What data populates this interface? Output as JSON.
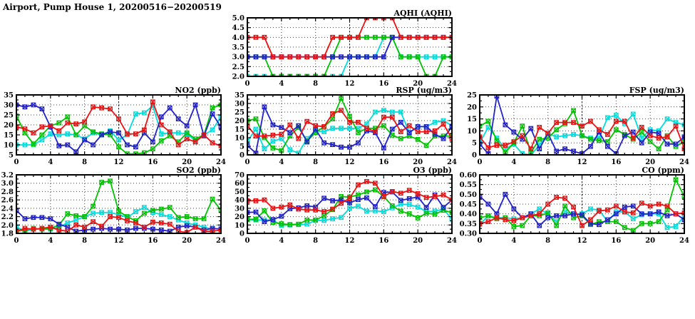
{
  "page_title": "Airport, Pump House 1, 20200516−20200519",
  "colors": {
    "red": "#ee1111",
    "blue": "#2222cc",
    "green": "#00c400",
    "cyan": "#00dede"
  },
  "chart_data": [
    {
      "id": "aqhi",
      "type": "line",
      "title": "AQHI (AQHI)",
      "xlim": [
        0,
        24
      ],
      "x_ticks": [
        0,
        4,
        8,
        12,
        16,
        20,
        24
      ],
      "x_minor_step": 1,
      "ylim": [
        2.0,
        5.0
      ],
      "ytick_step": 0.5,
      "ytick_decimals": 1,
      "grid": true,
      "legend": "none",
      "series": [
        {
          "name": "cyan",
          "color": "#00dede",
          "values": [
            2,
            2,
            2,
            2,
            2,
            2,
            2,
            2,
            2,
            2,
            2,
            2,
            3,
            3,
            3,
            3,
            4,
            4,
            3,
            3,
            3,
            3,
            3,
            3,
            3
          ]
        },
        {
          "name": "green",
          "color": "#00c400",
          "values": [
            3,
            3,
            3,
            2,
            2,
            2,
            2,
            2,
            2,
            2,
            3,
            4,
            4,
            4,
            4,
            4,
            4,
            4,
            3,
            3,
            3,
            2,
            2,
            3,
            3
          ]
        },
        {
          "name": "blue",
          "color": "#2222cc",
          "values": [
            3,
            3,
            3,
            3,
            3,
            3,
            3,
            3,
            3,
            3,
            3,
            3,
            3,
            3,
            3,
            3,
            3,
            4,
            4,
            4,
            4,
            4,
            4,
            4,
            4
          ]
        },
        {
          "name": "red",
          "color": "#ee1111",
          "values": [
            4,
            4,
            4,
            3,
            3,
            3,
            3,
            3,
            3,
            3,
            4,
            4,
            4,
            4,
            5,
            5,
            5,
            5,
            4,
            4,
            4,
            4,
            4,
            4,
            4
          ]
        }
      ]
    },
    {
      "id": "no2",
      "type": "line",
      "title": "NO2 (ppb)",
      "xlim": [
        0,
        24
      ],
      "x_ticks": [
        0,
        4,
        8,
        12,
        16,
        20,
        24
      ],
      "x_minor_step": 1,
      "ylim": [
        5,
        35
      ],
      "ytick_step": 5,
      "ytick_decimals": 0,
      "grid": true,
      "legend": "none",
      "series": [
        {
          "name": "cyan",
          "color": "#00dede",
          "values": [
            10,
            10,
            10,
            12.5,
            15.5,
            15,
            15.5,
            15,
            13,
            16,
            15,
            17,
            12.5,
            15,
            25.5,
            26,
            29.5,
            15.5,
            16,
            16,
            15.5,
            12,
            15,
            17.5,
            24
          ]
        },
        {
          "name": "green",
          "color": "#00c400",
          "values": [
            24.5,
            16,
            10.5,
            15,
            19.5,
            21,
            24,
            15,
            19.5,
            16.5,
            15.5,
            15,
            9,
            5.5,
            5.5,
            6,
            8,
            12,
            14.5,
            11.5,
            16,
            13,
            15,
            28.5,
            30
          ]
        },
        {
          "name": "blue",
          "color": "#2222cc",
          "values": [
            30,
            29,
            30,
            28,
            19,
            9.5,
            10,
            6.5,
            12.5,
            10,
            15,
            16.5,
            16,
            10,
            9,
            16,
            11.5,
            24,
            28.5,
            23,
            19.5,
            30,
            14.5,
            25.5,
            19
          ]
        },
        {
          "name": "red",
          "color": "#ee1111",
          "values": [
            19,
            18,
            16,
            19,
            19.5,
            17,
            21,
            20.5,
            21.5,
            29,
            28.5,
            28,
            23,
            15.5,
            15.5,
            17.5,
            31.5,
            20,
            16.5,
            10,
            13,
            11.5,
            15,
            11,
            9.5
          ]
        }
      ]
    },
    {
      "id": "rsp",
      "type": "line",
      "title": "RSP (ug/m3)",
      "xlim": [
        0,
        24
      ],
      "x_ticks": [
        0,
        4,
        8,
        12,
        16,
        20,
        24
      ],
      "x_minor_step": 1,
      "ylim": [
        0,
        35
      ],
      "ytick_step": 5,
      "ytick_decimals": 0,
      "grid": true,
      "legend": "none",
      "series": [
        {
          "name": "cyan",
          "color": "#00dede",
          "values": [
            8,
            15,
            3.5,
            8,
            9.5,
            3,
            1,
            9.5,
            14,
            13.5,
            15.5,
            15.5,
            15.5,
            15.5,
            18,
            25,
            26,
            25,
            25,
            13,
            16.5,
            16.5,
            19,
            20,
            17
          ]
        },
        {
          "name": "green",
          "color": "#00c400",
          "values": [
            20,
            21,
            10,
            4,
            2.5,
            11,
            16,
            8,
            13,
            16.5,
            21,
            33,
            22.5,
            13,
            15.5,
            15.5,
            17,
            11.5,
            9.5,
            11,
            9,
            5.5,
            11,
            11,
            11
          ]
        },
        {
          "name": "blue",
          "color": "#2222cc",
          "values": [
            5.5,
            1,
            28,
            17.5,
            16,
            13,
            17,
            7.5,
            15,
            7,
            6,
            4.5,
            4.5,
            7,
            14,
            13,
            4,
            15,
            19,
            13,
            16.5,
            16.5,
            12,
            9.5,
            16.5
          ]
        },
        {
          "name": "red",
          "color": "#ee1111",
          "values": [
            17,
            11,
            11,
            11.5,
            12,
            17.5,
            9.5,
            19.5,
            17,
            16.5,
            24,
            26,
            19,
            19,
            15.5,
            13.5,
            22,
            22,
            13.5,
            17,
            13.5,
            13.5,
            14,
            18,
            9.5
          ]
        }
      ]
    },
    {
      "id": "fsp",
      "type": "line",
      "title": "FSP (ug/m3)",
      "xlim": [
        0,
        24
      ],
      "x_ticks": [
        0,
        4,
        8,
        12,
        16,
        20,
        24
      ],
      "x_minor_step": 1,
      "ylim": [
        0,
        25
      ],
      "ytick_step": 5,
      "ytick_decimals": 0,
      "grid": true,
      "legend": "none",
      "series": [
        {
          "name": "cyan",
          "color": "#00dede",
          "values": [
            5,
            11.5,
            7,
            2.5,
            4.5,
            0.5,
            0,
            4,
            9,
            7.5,
            8,
            8.5,
            8,
            7,
            7,
            15.5,
            16.5,
            13,
            17,
            7,
            10.5,
            10,
            15,
            13.5,
            12.5
          ]
        },
        {
          "name": "green",
          "color": "#00c400",
          "values": [
            12,
            14,
            6,
            1,
            5,
            12,
            1,
            6.5,
            7,
            10.5,
            13,
            18.5,
            8,
            6.5,
            6,
            5.5,
            10.5,
            8.5,
            6.5,
            9.5,
            5.5,
            2.5,
            8,
            3.5,
            5.5
          ]
        },
        {
          "name": "blue",
          "color": "#2222cc",
          "values": [
            4.5,
            0.5,
            24.5,
            12.5,
            9.5,
            6.5,
            11,
            2.5,
            9,
            1.5,
            2.5,
            1.5,
            0.5,
            3.5,
            9.5,
            3.5,
            0.5,
            8,
            9.5,
            5,
            9.5,
            9,
            4.5,
            4.5,
            7.5
          ]
        },
        {
          "name": "red",
          "color": "#ee1111",
          "values": [
            7.5,
            3,
            4,
            4,
            5.5,
            8,
            2.5,
            11.5,
            9,
            13.5,
            13.5,
            13.5,
            12,
            14,
            10.5,
            8.5,
            14,
            14,
            7,
            11.5,
            8,
            7,
            7.5,
            12,
            2.5
          ]
        }
      ]
    },
    {
      "id": "so2",
      "type": "line",
      "title": "SO2 (ppb)",
      "xlim": [
        0,
        24
      ],
      "x_ticks": [
        0,
        4,
        8,
        12,
        16,
        20,
        24
      ],
      "x_minor_step": 1,
      "ylim": [
        1.8,
        3.2
      ],
      "ytick_step": 0.2,
      "ytick_decimals": 1,
      "grid": true,
      "legend": "none",
      "series": [
        {
          "name": "cyan",
          "color": "#00dede",
          "values": [
            1.95,
            1.85,
            1.9,
            1.9,
            1.9,
            1.95,
            2.05,
            2.12,
            2.2,
            2.28,
            2.3,
            2.3,
            2.25,
            2.18,
            2.32,
            2.42,
            2.3,
            2.25,
            2.2,
            2.12,
            2.05,
            2.0,
            1.95,
            1.9,
            1.92
          ]
        },
        {
          "name": "green",
          "color": "#00c400",
          "values": [
            1.85,
            1.88,
            1.92,
            1.9,
            1.92,
            2.0,
            2.27,
            2.22,
            2.2,
            2.45,
            3.02,
            3.05,
            2.33,
            2.2,
            2.1,
            2.28,
            2.35,
            2.38,
            2.42,
            2.18,
            2.2,
            2.15,
            2.15,
            2.62,
            2.35
          ]
        },
        {
          "name": "blue",
          "color": "#2222cc",
          "values": [
            2.35,
            2.15,
            2.18,
            2.18,
            2.15,
            2.02,
            1.95,
            1.85,
            1.88,
            1.9,
            1.92,
            1.9,
            1.9,
            1.88,
            1.92,
            1.92,
            1.9,
            1.88,
            1.85,
            1.95,
            1.98,
            1.95,
            1.88,
            1.92,
            1.9
          ]
        },
        {
          "name": "red",
          "color": "#ee1111",
          "values": [
            1.85,
            1.92,
            1.9,
            1.92,
            1.95,
            1.88,
            1.85,
            2.0,
            1.95,
            2.08,
            1.97,
            2.2,
            2.18,
            2.1,
            2.05,
            1.95,
            2.07,
            2.05,
            2.02,
            1.85,
            1.82,
            1.95,
            1.85,
            1.85,
            1.88
          ]
        }
      ]
    },
    {
      "id": "o3",
      "type": "line",
      "title": "O3 (ppb)",
      "xlim": [
        0,
        24
      ],
      "x_ticks": [
        0,
        4,
        8,
        12,
        16,
        20,
        24
      ],
      "x_minor_step": 1,
      "ylim": [
        0,
        70
      ],
      "ytick_step": 10,
      "ytick_decimals": 0,
      "grid": true,
      "legend": "none",
      "series": [
        {
          "name": "cyan",
          "color": "#00dede",
          "values": [
            16.5,
            16,
            16,
            16,
            9.5,
            10,
            10.5,
            11,
            15.5,
            15.5,
            17.5,
            19,
            30,
            32.5,
            26.5,
            27,
            26,
            30.5,
            35,
            34.5,
            31.5,
            26,
            26.5,
            29,
            17
          ]
        },
        {
          "name": "green",
          "color": "#00c400",
          "values": [
            16.5,
            17,
            27,
            13,
            11.5,
            10.5,
            11,
            16,
            16,
            21,
            28.5,
            44,
            43.5,
            46,
            49.5,
            52,
            44,
            33,
            26.5,
            23.5,
            18.5,
            24,
            23,
            27.5,
            25
          ]
        },
        {
          "name": "blue",
          "color": "#2222cc",
          "values": [
            25,
            25.5,
            14,
            16.5,
            20.5,
            29.5,
            30.5,
            33,
            31.5,
            42,
            39,
            40,
            36.5,
            40.5,
            42.5,
            32,
            49,
            49.5,
            39.5,
            41.5,
            43.5,
            31,
            46,
            31,
            40
          ]
        },
        {
          "name": "red",
          "color": "#ee1111",
          "values": [
            39,
            39,
            40,
            30,
            31.5,
            34,
            29,
            28,
            28,
            26,
            29,
            36,
            42,
            58,
            62,
            60,
            44,
            50,
            48,
            51.5,
            47.5,
            43,
            44,
            46,
            40
          ]
        }
      ]
    },
    {
      "id": "co",
      "type": "line",
      "title": "CO (ppm)",
      "xlim": [
        0,
        24
      ],
      "x_ticks": [
        0,
        4,
        8,
        12,
        16,
        20,
        24
      ],
      "x_minor_step": 1,
      "ylim": [
        0.3,
        0.6
      ],
      "ytick_step": 0.05,
      "ytick_decimals": 2,
      "grid": true,
      "legend": "none",
      "series": [
        {
          "name": "cyan",
          "color": "#00dede",
          "values": [
            0.345,
            0.39,
            0.38,
            0.38,
            0.375,
            0.38,
            0.4,
            0.425,
            0.4,
            0.36,
            0.41,
            0.4,
            0.4,
            0.425,
            0.42,
            0.36,
            0.41,
            0.41,
            0.375,
            0.395,
            0.4,
            0.4,
            0.33,
            0.335,
            0.39
          ]
        },
        {
          "name": "green",
          "color": "#00c400",
          "values": [
            0.38,
            0.39,
            0.375,
            0.38,
            0.335,
            0.34,
            0.39,
            0.39,
            0.405,
            0.34,
            0.44,
            0.38,
            0.39,
            0.345,
            0.36,
            0.36,
            0.36,
            0.33,
            0.315,
            0.35,
            0.35,
            0.36,
            0.42,
            0.575,
            0.49
          ]
        },
        {
          "name": "blue",
          "color": "#2222cc",
          "values": [
            0.49,
            0.45,
            0.4,
            0.5,
            0.425,
            0.38,
            0.4,
            0.34,
            0.38,
            0.39,
            0.39,
            0.4,
            0.395,
            0.35,
            0.345,
            0.37,
            0.4,
            0.435,
            0.44,
            0.4,
            0.4,
            0.41,
            0.39,
            0.4,
            0.37
          ]
        },
        {
          "name": "red",
          "color": "#ee1111",
          "values": [
            0.35,
            0.36,
            0.38,
            0.37,
            0.365,
            0.38,
            0.39,
            0.4,
            0.45,
            0.485,
            0.48,
            0.435,
            0.34,
            0.37,
            0.415,
            0.42,
            0.44,
            0.41,
            0.405,
            0.455,
            0.44,
            0.45,
            0.44,
            0.4,
            0.405
          ]
        }
      ]
    }
  ]
}
